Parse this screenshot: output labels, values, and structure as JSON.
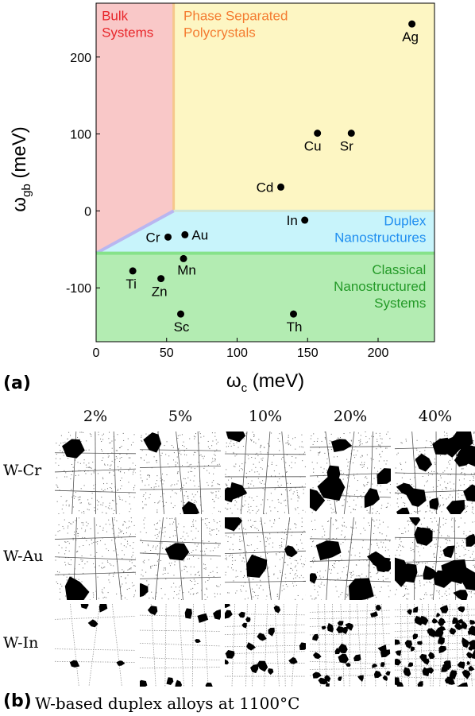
{
  "panel_a": {
    "label": "(a)",
    "chart_data": {
      "type": "scatter",
      "xlabel_main": "ω",
      "xlabel_sub": "c",
      "xlabel_unit": " (meV)",
      "ylabel_main": "ω",
      "ylabel_sub": "gb",
      "ylabel_unit": " (meV)",
      "xlim": [
        0,
        240
      ],
      "ylim": [
        -170,
        270
      ],
      "xticks": [
        0,
        50,
        100,
        150,
        200
      ],
      "yticks": [
        -100,
        0,
        100,
        200
      ],
      "grid": false,
      "regions": [
        {
          "name": "Bulk Systems",
          "lines": [
            "Bulk",
            "Systems"
          ],
          "color": "#f9c8c8",
          "text_color": "#e8262a"
        },
        {
          "name": "Phase Separated Polycrystals",
          "lines": [
            "Phase Separated",
            "Polycrystals"
          ],
          "color": "#fdf6c3",
          "text_color": "#f47b30"
        },
        {
          "name": "Duplex Nanostructures",
          "lines": [
            "Duplex",
            "Nanostructures"
          ],
          "color": "#c8f4fb",
          "text_color": "#1f8ef0"
        },
        {
          "name": "Classical Nanostructured Systems",
          "lines": [
            "Classical",
            "Nanostructured",
            "Systems"
          ],
          "color": "#b3ecb2",
          "text_color": "#249a28"
        }
      ],
      "points": [
        {
          "label": "Ag",
          "x": 224,
          "y": 243
        },
        {
          "label": "Cu",
          "x": 157,
          "y": 101
        },
        {
          "label": "Sr",
          "x": 181,
          "y": 101
        },
        {
          "label": "Cd",
          "x": 131,
          "y": 31
        },
        {
          "label": "In",
          "x": 148,
          "y": -12
        },
        {
          "label": "Cr",
          "x": 51,
          "y": -34
        },
        {
          "label": "Au",
          "x": 63,
          "y": -31
        },
        {
          "label": "Mn",
          "x": 62,
          "y": -62
        },
        {
          "label": "Ti",
          "x": 26,
          "y": -78
        },
        {
          "label": "Zn",
          "x": 46,
          "y": -88
        },
        {
          "label": "Sc",
          "x": 60,
          "y": -134
        },
        {
          "label": "Th",
          "x": 140,
          "y": -134
        }
      ]
    }
  },
  "panel_b": {
    "label": "(b)",
    "caption": "W-based duplex alloys at 1100°C",
    "columns": [
      "2%",
      "5%",
      "10%",
      "20%",
      "40%"
    ],
    "rows": [
      "W-Cr",
      "W-Au",
      "W-In"
    ]
  }
}
